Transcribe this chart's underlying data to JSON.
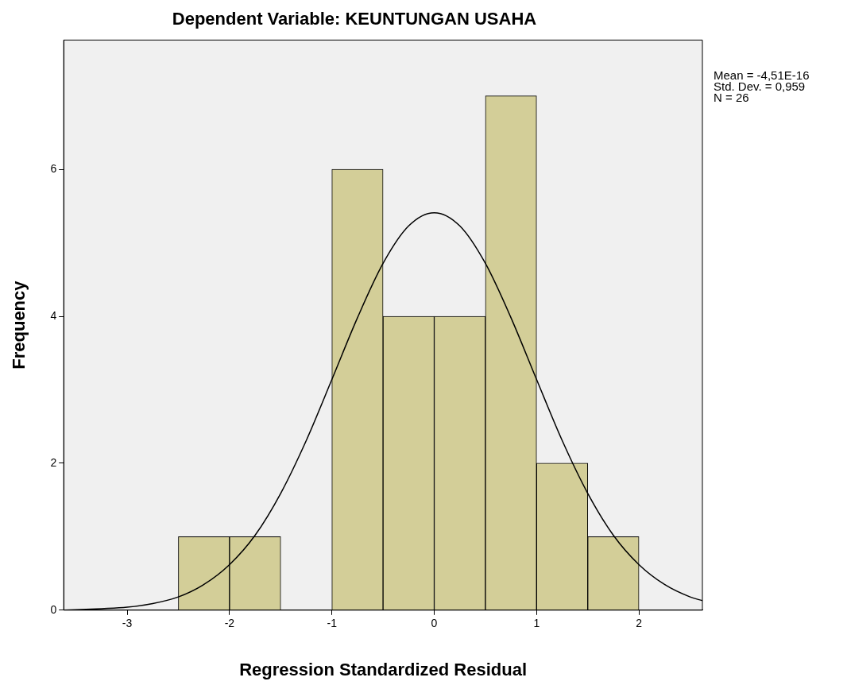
{
  "chart_data": {
    "type": "histogram",
    "title": "Dependent Variable: KEUNTUNGAN USAHA",
    "xlabel": "Regression Standardized Residual",
    "ylabel": "Frequency",
    "bins": [
      -2.5,
      -2,
      -1.5,
      -1,
      -0.5,
      0,
      0.5,
      1,
      1.5,
      2
    ],
    "values": [
      1,
      1,
      0,
      6,
      4,
      4,
      7,
      2,
      1
    ],
    "color": "#d3ce98",
    "series": [
      {
        "type": "line",
        "color": "#000000",
        "x": [
          -3.62,
          -3.25,
          -3,
          -2.75,
          -2.5,
          -2.25,
          -2,
          -1.75,
          -1.5,
          -1.25,
          -1,
          -0.75,
          -0.5,
          -0.25,
          0,
          0.25,
          0.5,
          0.75,
          1,
          1.25,
          1.5,
          1.75,
          2,
          2.25,
          2.5,
          2.62
        ],
        "values": [
          0,
          0.02,
          0.04,
          0.09,
          0.18,
          0.35,
          0.62,
          1.02,
          1.59,
          2.31,
          3.14,
          3.98,
          4.72,
          5.23,
          5.41,
          5.23,
          4.72,
          3.98,
          3.14,
          2.31,
          1.59,
          1.02,
          0.62,
          0.35,
          0.18,
          0.13
        ]
      }
    ],
    "xlim": [
      -3.62,
      2.62
    ],
    "xticks": [
      -3,
      -2,
      -1,
      0,
      1,
      2
    ],
    "ylim": [
      0,
      7.76
    ],
    "yticks": [
      0,
      2,
      4,
      6
    ],
    "grid": false,
    "legend": false,
    "marker": "none",
    "annotations": [
      "Mean = -4,51E-16",
      "Std. Dev. = 0,959",
      "N = 26"
    ]
  }
}
